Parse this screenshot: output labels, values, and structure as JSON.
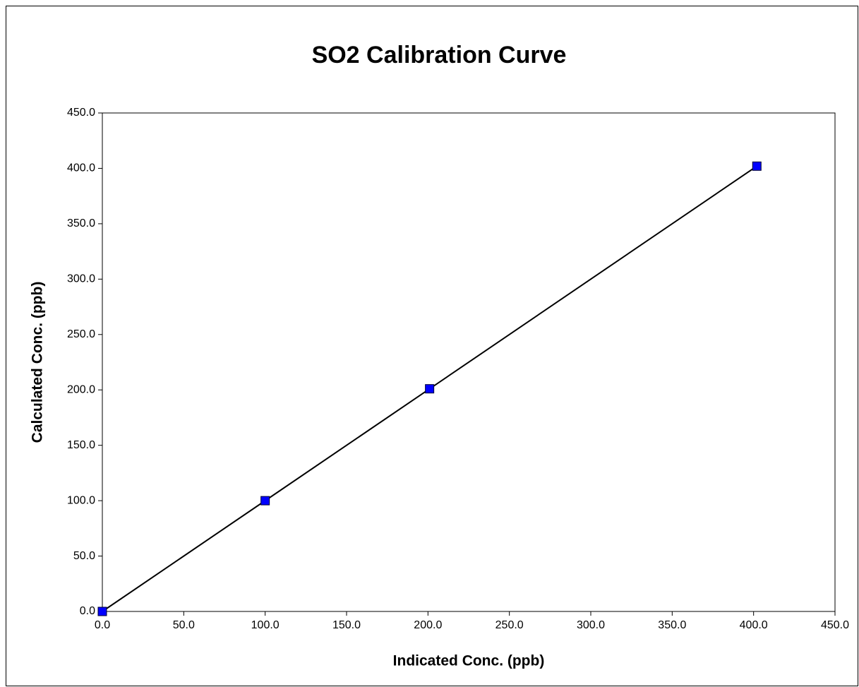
{
  "chart_data": {
    "type": "scatter",
    "title": "SO2 Calibration Curve",
    "x_label": "Indicated Conc. (ppb)",
    "y_label": "Calculated Conc. (ppb)",
    "series": [
      {
        "x": [
          0,
          100,
          201,
          402
        ],
        "values": [
          0,
          100,
          201,
          402
        ],
        "color": "#0000ff",
        "line_color": "#000000"
      }
    ],
    "xlim": [
      0,
      450
    ],
    "ylim": [
      0,
      450
    ],
    "xticks": [
      {
        "value": 0,
        "label": "0.0"
      },
      {
        "value": 50,
        "label": "50.0"
      },
      {
        "value": 100,
        "label": "100.0"
      },
      {
        "value": 150,
        "label": "150.0"
      },
      {
        "value": 200,
        "label": "200.0"
      },
      {
        "value": 250,
        "label": "250.0"
      },
      {
        "value": 300,
        "label": "300.0"
      },
      {
        "value": 350,
        "label": "350.0"
      },
      {
        "value": 400,
        "label": "400.0"
      },
      {
        "value": 450,
        "label": "450.0"
      }
    ],
    "yticks": [
      {
        "value": 0,
        "label": "0.0"
      },
      {
        "value": 50,
        "label": "50.0"
      },
      {
        "value": 100,
        "label": "100.0"
      },
      {
        "value": 150,
        "label": "150.0"
      },
      {
        "value": 200,
        "label": "200.0"
      },
      {
        "value": 250,
        "label": "250.0"
      },
      {
        "value": 300,
        "label": "300.0"
      },
      {
        "value": 350,
        "label": "350.0"
      },
      {
        "value": 400,
        "label": "400.0"
      },
      {
        "value": 450,
        "label": "450.0"
      }
    ],
    "grid": false
  }
}
